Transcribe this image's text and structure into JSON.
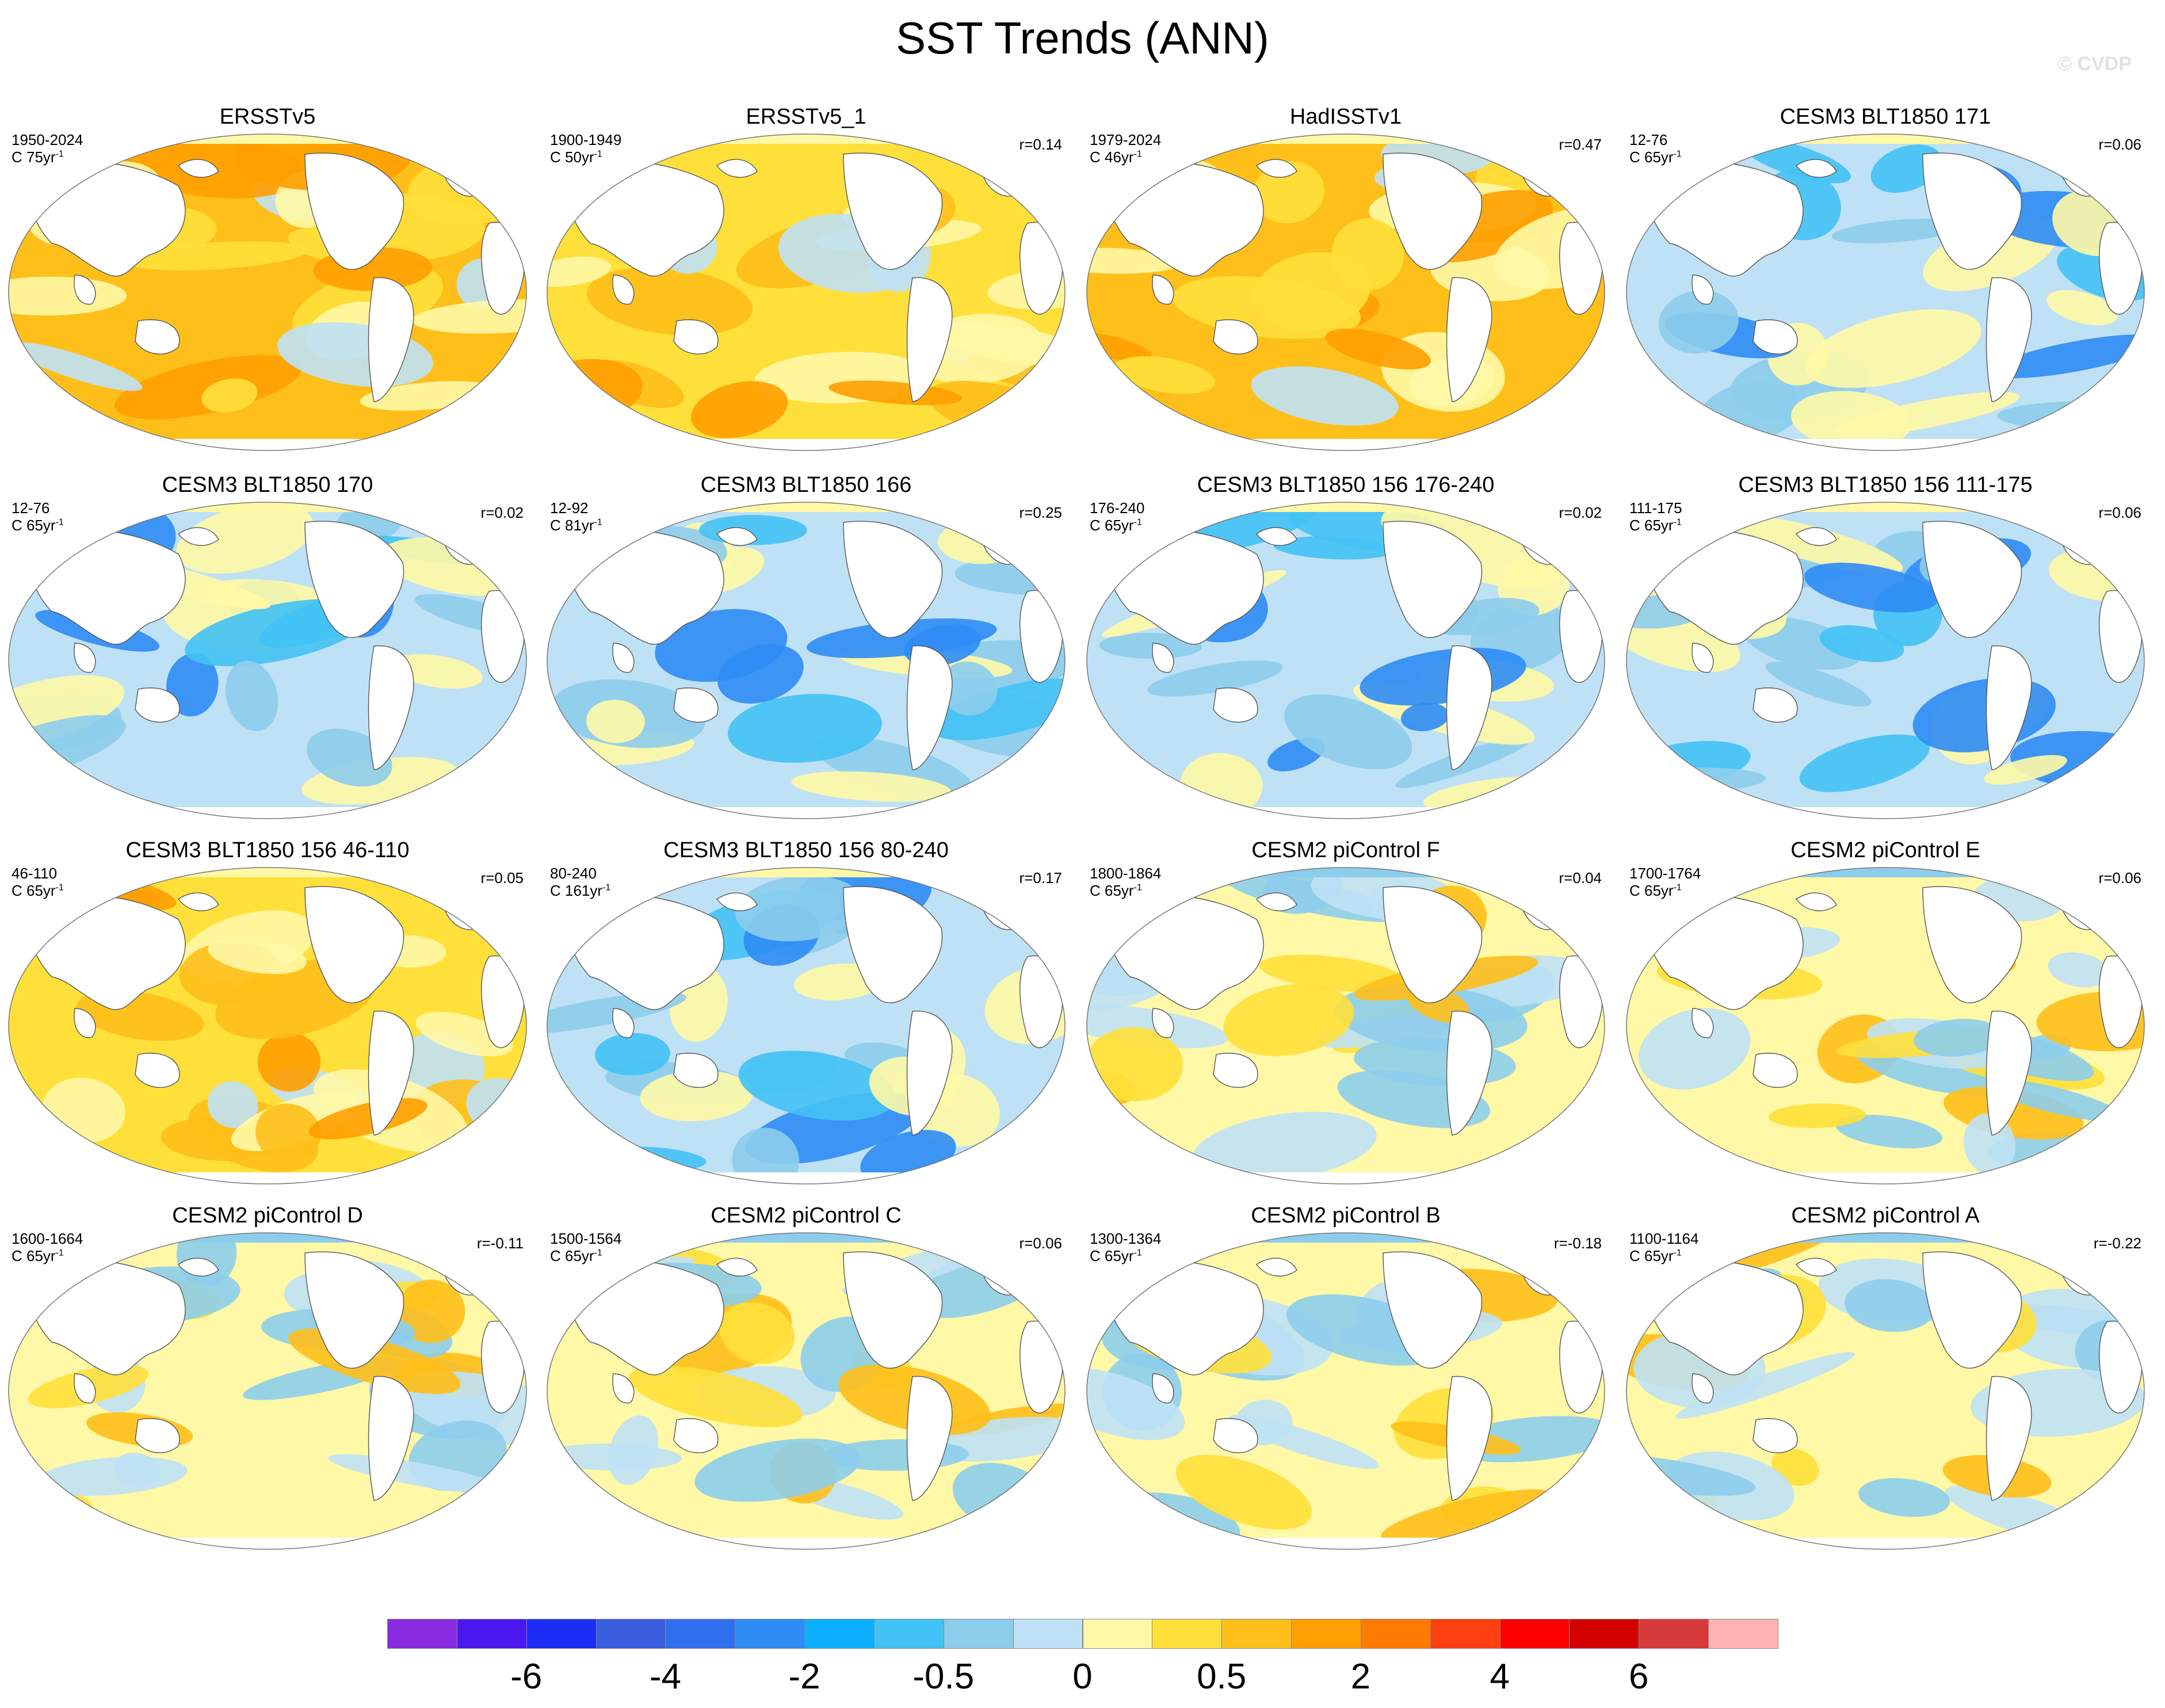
{
  "title": "SST Trends (ANN)",
  "watermark": "© CVDP",
  "units_prefix": "C ",
  "units_suffix": "yr",
  "units_exp": "-1",
  "panels": [
    {
      "title": "ERSSTv5",
      "years": "1950-2024",
      "length": "75",
      "corr": "",
      "style": "warm"
    },
    {
      "title": "ERSSTv5_1",
      "years": "1900-1949",
      "length": "50",
      "corr": "r=0.14",
      "style": "mixedwarm"
    },
    {
      "title": "HadISSTv1",
      "years": "1979-2024",
      "length": "46",
      "corr": "r=0.47",
      "style": "warm"
    },
    {
      "title": "CESM3 BLT1850 171",
      "years": "12-76",
      "length": "65",
      "corr": "r=0.06",
      "style": "cool"
    },
    {
      "title": "CESM3 BLT1850 170",
      "years": "12-76",
      "length": "65",
      "corr": "r=0.02",
      "style": "cool"
    },
    {
      "title": "CESM3 BLT1850 166",
      "years": "12-92",
      "length": "81",
      "corr": "r=0.25",
      "style": "cool"
    },
    {
      "title": "CESM3 BLT1850 156 176-240",
      "years": "176-240",
      "length": "65",
      "corr": "r=0.02",
      "style": "cool"
    },
    {
      "title": "CESM3 BLT1850 156 111-175",
      "years": "111-175",
      "length": "65",
      "corr": "r=0.06",
      "style": "cool"
    },
    {
      "title": "CESM3 BLT1850 156 46-110",
      "years": "46-110",
      "length": "65",
      "corr": "r=0.05",
      "style": "mixedwarm"
    },
    {
      "title": "CESM3 BLT1850 156 80-240",
      "years": "80-240",
      "length": "161",
      "corr": "r=0.17",
      "style": "cool"
    },
    {
      "title": "CESM2 piControl F",
      "years": "1800-1864",
      "length": "65",
      "corr": "r=0.04",
      "style": "mixed"
    },
    {
      "title": "CESM2 piControl E",
      "years": "1700-1764",
      "length": "65",
      "corr": "r=0.06",
      "style": "mixed"
    },
    {
      "title": "CESM2 piControl D",
      "years": "1600-1664",
      "length": "65",
      "corr": "r=-0.11",
      "style": "mixed"
    },
    {
      "title": "CESM2 piControl C",
      "years": "1500-1564",
      "length": "65",
      "corr": "r=0.06",
      "style": "mixed"
    },
    {
      "title": "CESM2 piControl B",
      "years": "1300-1364",
      "length": "65",
      "corr": "r=-0.18",
      "style": "mixed"
    },
    {
      "title": "CESM2 piControl A",
      "years": "1100-1164",
      "length": "65",
      "corr": "r=-0.22",
      "style": "mixed"
    }
  ],
  "colorbar": {
    "colors": [
      "#8a2be2",
      "#4b19f0",
      "#1a2cf5",
      "#3a5ee0",
      "#2f6ff0",
      "#2e8cf5",
      "#0ab0ff",
      "#42c2f5",
      "#8dcdec",
      "#bfe1f5",
      "#fff8a6",
      "#ffe03a",
      "#ffbf1a",
      "#ff9f00",
      "#ff7a00",
      "#ff3f10",
      "#ff0000",
      "#d40000",
      "#d63a3a",
      "#ffb3b3"
    ],
    "labels": [
      {
        "text": "-6",
        "boundary": 2
      },
      {
        "text": "-4",
        "boundary": 4
      },
      {
        "text": "-2",
        "boundary": 6
      },
      {
        "text": "-0.5",
        "boundary": 8
      },
      {
        "text": "0",
        "boundary": 10
      },
      {
        "text": "0.5",
        "boundary": 12
      },
      {
        "text": "2",
        "boundary": 14
      },
      {
        "text": "4",
        "boundary": 16
      },
      {
        "text": "6",
        "boundary": 18
      }
    ]
  }
}
